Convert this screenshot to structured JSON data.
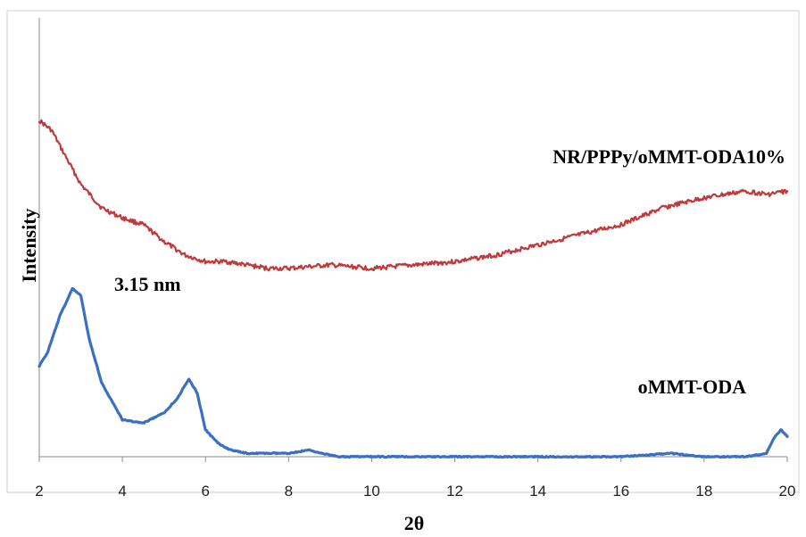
{
  "chart_data": {
    "type": "line",
    "title": "",
    "xlabel": "2θ",
    "ylabel": "Intensity",
    "xlim": [
      2,
      20
    ],
    "ylim": [
      0,
      100
    ],
    "xticks": [
      2,
      4,
      6,
      8,
      10,
      12,
      14,
      16,
      18,
      20
    ],
    "grid": false,
    "series": [
      {
        "name": "NR/PPPy/oMMT-ODA10%",
        "color": "#c0393b",
        "x": [
          2,
          2.3,
          2.6,
          3.0,
          3.5,
          4.0,
          4.5,
          5.0,
          5.5,
          6.0,
          6.5,
          7.0,
          7.5,
          8.0,
          9.0,
          10.0,
          11.0,
          12.0,
          13.0,
          14.0,
          15.0,
          16.0,
          17.0,
          18.0,
          19.0,
          19.5,
          20.0
        ],
        "y": [
          100,
          97,
          90,
          81,
          74,
          71,
          69,
          64,
          60,
          58,
          58,
          57,
          56,
          56,
          57,
          56,
          57,
          58,
          60,
          63,
          66,
          69,
          74,
          77,
          79,
          78,
          79
        ]
      },
      {
        "name": "oMMT-ODA",
        "color": "#3a6fc4",
        "x": [
          2,
          2.2,
          2.5,
          2.8,
          3.0,
          3.2,
          3.5,
          4.0,
          4.5,
          5.0,
          5.3,
          5.6,
          5.8,
          6.0,
          6.3,
          6.6,
          7.0,
          7.5,
          8.0,
          8.5,
          8.8,
          9.2,
          10.0,
          12.0,
          14.0,
          16.0,
          17.2,
          18.0,
          19.0,
          19.5,
          19.7,
          19.85,
          20.0
        ],
        "y": [
          27,
          31,
          42,
          50,
          48,
          35,
          22,
          11,
          10,
          13,
          17,
          23,
          19,
          8,
          4,
          2,
          1,
          1,
          1,
          2,
          1,
          0,
          0,
          0,
          0,
          0,
          1,
          0,
          0,
          1,
          6,
          8,
          6
        ]
      }
    ],
    "annotations": [
      {
        "text": "3.15 nm",
        "x": 2.85,
        "y": 51
      }
    ]
  }
}
